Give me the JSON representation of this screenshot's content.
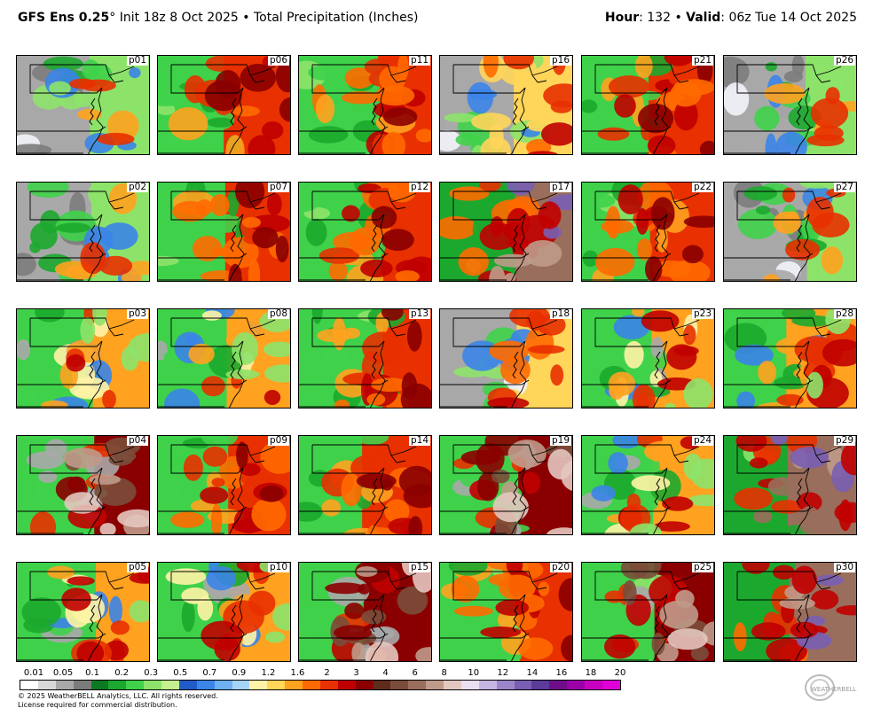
{
  "header": {
    "left_model": "GFS Ens 0.25",
    "left_rest": "° Init 18z 8 Oct 2025 • Total Precipitation (Inches)",
    "hour_label": "Hour",
    "hour_value": ": 132 • ",
    "valid_label": "Valid",
    "valid_value": ": 06z Tue 14 Oct 2025"
  },
  "panels": [
    {
      "label": "p01",
      "style": "west-dry"
    },
    {
      "label": "p06",
      "style": "wet-east"
    },
    {
      "label": "p11",
      "style": "wet-east"
    },
    {
      "label": "p16",
      "style": "dry-north"
    },
    {
      "label": "p21",
      "style": "wet-east"
    },
    {
      "label": "p26",
      "style": "west-dry"
    },
    {
      "label": "p02",
      "style": "west-dry"
    },
    {
      "label": "p07",
      "style": "wet-east"
    },
    {
      "label": "p12",
      "style": "wet-east"
    },
    {
      "label": "p17",
      "style": "wet-purple"
    },
    {
      "label": "p22",
      "style": "wet-east"
    },
    {
      "label": "p27",
      "style": "west-dry"
    },
    {
      "label": "p03",
      "style": "mixed"
    },
    {
      "label": "p08",
      "style": "mixed"
    },
    {
      "label": "p13",
      "style": "wet-east"
    },
    {
      "label": "p18",
      "style": "dry-north"
    },
    {
      "label": "p23",
      "style": "mixed"
    },
    {
      "label": "p28",
      "style": "mixed"
    },
    {
      "label": "p04",
      "style": "wet-brown"
    },
    {
      "label": "p09",
      "style": "wet-east"
    },
    {
      "label": "p14",
      "style": "wet-east"
    },
    {
      "label": "p19",
      "style": "wet-brown"
    },
    {
      "label": "p24",
      "style": "mixed"
    },
    {
      "label": "p29",
      "style": "wet-purple"
    },
    {
      "label": "p05",
      "style": "mixed"
    },
    {
      "label": "p10",
      "style": "mixed"
    },
    {
      "label": "p15",
      "style": "wet-brown"
    },
    {
      "label": "p20",
      "style": "wet-east"
    },
    {
      "label": "p25",
      "style": "wet-brown"
    },
    {
      "label": "p30",
      "style": "wet-purple"
    }
  ],
  "colorbar": {
    "ticks": [
      "0.01",
      "0.05",
      "0.1",
      "0.2",
      "0.3",
      "0.5",
      "0.7",
      "0.9",
      "1.2",
      "1.6",
      "2",
      "3",
      "4",
      "6",
      "8",
      "10",
      "12",
      "14",
      "16",
      "18",
      "20"
    ],
    "colors": [
      "#ffffff",
      "#d8d8d8",
      "#a8a8a8",
      "#7c7c7c",
      "#0b7a20",
      "#1ca82e",
      "#3fd14a",
      "#8de36a",
      "#c6f08f",
      "#1f5cc8",
      "#3b84e8",
      "#6fb0f0",
      "#a5d4f7",
      "#fff3a6",
      "#ffd55a",
      "#ffa21f",
      "#ff6a00",
      "#e83000",
      "#c00000",
      "#8a0000",
      "#5e2c1c",
      "#7a4d3a",
      "#9a6e5c",
      "#bf9a8a",
      "#e3c7bf",
      "#e9dff0",
      "#c5b5e2",
      "#9c86c9",
      "#7a5eb3",
      "#5c3b99",
      "#6f0d8a",
      "#9c00a8",
      "#c800c0",
      "#e000d8"
    ]
  },
  "copyright": {
    "line1": "© 2025 WeatherBELL Analytics, LLC. All rights reserved.",
    "line2": "License required for commercial distribution."
  },
  "logo_text": "WEATHERBELL"
}
